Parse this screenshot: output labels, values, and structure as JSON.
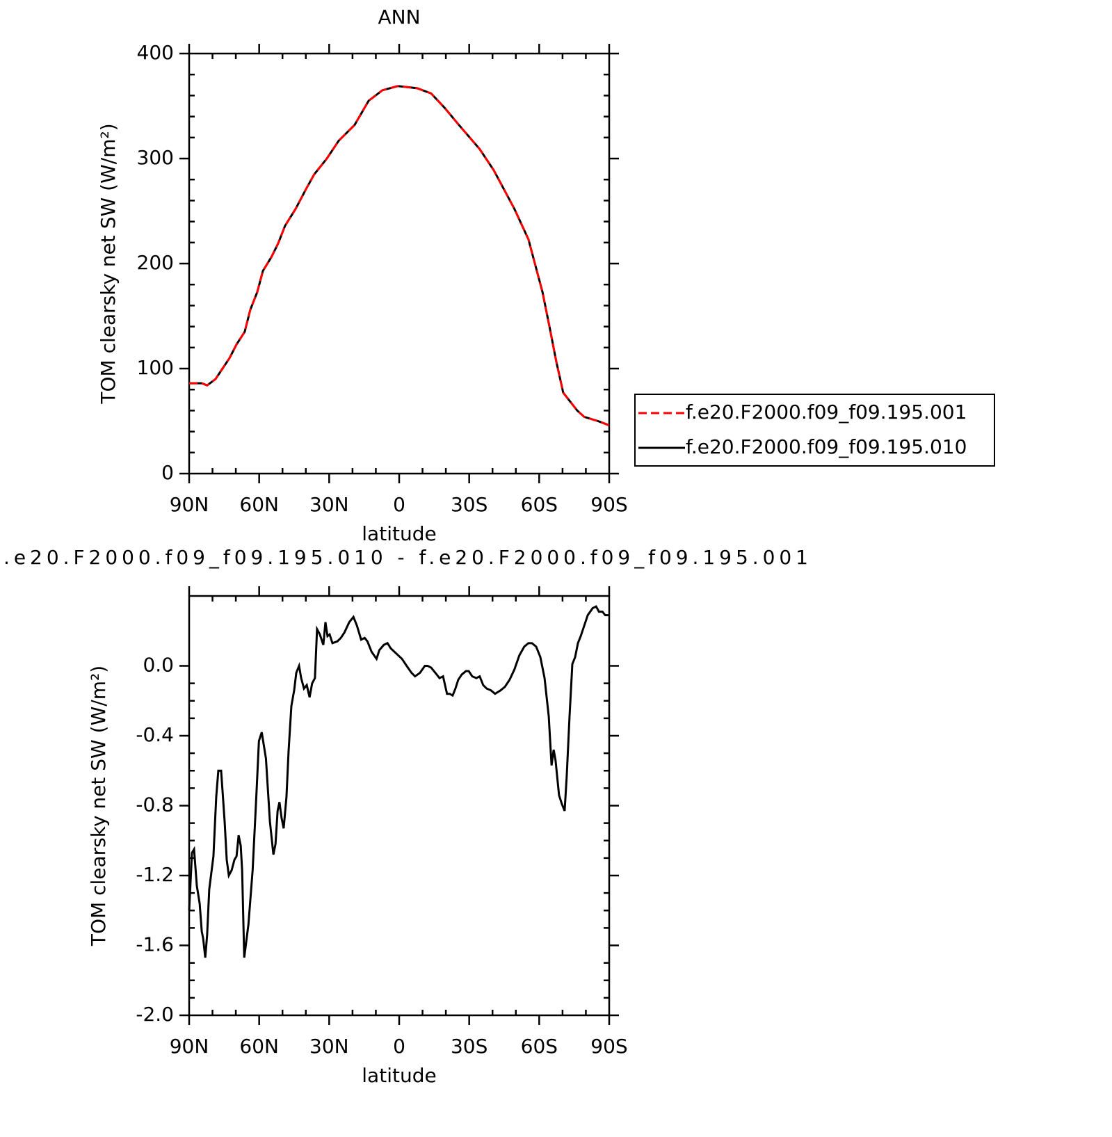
{
  "chart_data": [
    {
      "type": "line",
      "title": "ANN",
      "xlabel": "latitude",
      "ylabel": "TOM clearsky net SW (W/m²)",
      "xlim": [
        90,
        -90
      ],
      "xticks": [
        {
          "value": 90,
          "label": "90N"
        },
        {
          "value": 60,
          "label": "60N"
        },
        {
          "value": 30,
          "label": "30N"
        },
        0,
        {
          "value": -30,
          "label": "30S"
        },
        {
          "value": -60,
          "label": "60S"
        },
        {
          "value": -90,
          "label": "90S"
        }
      ],
      "ylim": [
        0,
        400
      ],
      "yticks": [
        0,
        100,
        200,
        300,
        400
      ],
      "legend": "right",
      "x": [
        90,
        84.6,
        82.3,
        78.7,
        75.7,
        72.7,
        69.7,
        66.2,
        63.8,
        60.8,
        58.4,
        54.8,
        51.9,
        48.9,
        44.4,
        39.9,
        36.4,
        31,
        25.9,
        19.1,
        13.1,
        7.2,
        0.6,
        -7.7,
        -13.7,
        -19.6,
        -25.6,
        -34.5,
        -40.5,
        -49.4,
        -55.4,
        -61.4,
        -64.4,
        -67.3,
        -70.3,
        -76.3,
        -79.3,
        -85.2,
        -90
      ],
      "series": [
        {
          "name": "f.e20.F2000.f09_f09.195.001",
          "color": "#ff0000",
          "line_style": "dashed",
          "values": [
            86,
            86,
            84,
            90,
            100,
            110,
            123,
            135,
            156,
            173,
            193,
            206,
            219,
            236,
            252,
            271,
            285,
            300,
            317,
            332,
            355,
            365,
            369,
            367,
            362,
            348,
            332,
            309,
            289,
            252,
            223,
            173,
            140,
            107,
            77,
            60,
            54,
            50,
            46
          ]
        },
        {
          "name": "f.e20.F2000.f09_f09.195.010",
          "color": "#000000",
          "line_style": "solid",
          "values": [
            86,
            86,
            84,
            90,
            100,
            110,
            123,
            135,
            156,
            173,
            193,
            206,
            219,
            236,
            252,
            271,
            285,
            300,
            317,
            332,
            355,
            365,
            369,
            367,
            362,
            348,
            332,
            309,
            289,
            252,
            223,
            173,
            140,
            107,
            77,
            60,
            54,
            50,
            46
          ]
        }
      ]
    },
    {
      "type": "line",
      "title": ".e20.F2000.f09_f09.195.010 - f.e20.F2000.f09_f09.195.001",
      "xlabel": "latitude",
      "ylabel": "TOM clearsky net SW (W/m²)",
      "xlim": [
        90,
        -90
      ],
      "xticks": [
        {
          "value": 90,
          "label": "90N"
        },
        {
          "value": 60,
          "label": "60N"
        },
        {
          "value": 30,
          "label": "30N"
        },
        0,
        {
          "value": -30,
          "label": "30S"
        },
        {
          "value": -60,
          "label": "60S"
        },
        {
          "value": -90,
          "label": "90S"
        }
      ],
      "ylim": [
        -2.0,
        0.4
      ],
      "yticks": [
        {
          "value": -2,
          "label": "-2.0"
        },
        -1.6,
        -1.2,
        -0.8,
        -0.4,
        {
          "value": 0,
          "label": "0.0"
        }
      ],
      "x": [
        90,
        88.8,
        87.9,
        86.7,
        85.5,
        84.6,
        84.0,
        83.1,
        82.3,
        81.4,
        79.6,
        78.4,
        77.5,
        76.3,
        74.8,
        73.9,
        73.0,
        71.8,
        70.6,
        69.7,
        68.8,
        67.9,
        67.3,
        66.4,
        64.6,
        62.8,
        61.3,
        60.1,
        58.9,
        57.1,
        55.4,
        53.9,
        53.0,
        52.1,
        51.3,
        50.4,
        49.5,
        48.3,
        47.4,
        46.2,
        45.0,
        44.1,
        42.9,
        42.0,
        40.8,
        39.6,
        38.4,
        37.3,
        36.1,
        35.2,
        34.0,
        32.5,
        31.6,
        30.7,
        29.8,
        28.6,
        26.5,
        25.0,
        23.5,
        21.4,
        19.6,
        18.1,
        16.3,
        14.8,
        13.6,
        11.8,
        9.7,
        8.5,
        6.6,
        5.0,
        3.6,
        1.2,
        -1.2,
        -3.2,
        -5.3,
        -6.8,
        -8.9,
        -11.0,
        -12.2,
        -13.7,
        -15.5,
        -17.3,
        -18.8,
        -20.5,
        -21.7,
        -22.9,
        -24.1,
        -25.3,
        -26.8,
        -28.6,
        -29.8,
        -31.3,
        -33.1,
        -34.5,
        -36.0,
        -37.5,
        -39.3,
        -41.1,
        -43.5,
        -45.3,
        -47.3,
        -49.4,
        -51.5,
        -53.6,
        -55.4,
        -56.9,
        -58.7,
        -60.5,
        -62.3,
        -64.1,
        -65.3,
        -66.2,
        -67.0,
        -68.5,
        -69.7,
        -70.9,
        -71.8,
        -73.0,
        -74.2,
        -75.4,
        -76.6,
        -77.8,
        -79.3,
        -80.8,
        -82.9,
        -84.4,
        -85.6,
        -87.1,
        -88.3,
        -90.0
      ],
      "series": [
        {
          "color": "#000000",
          "line_style": "solid",
          "values": [
            -1.4,
            -1.07,
            -1.05,
            -1.26,
            -1.36,
            -1.52,
            -1.56,
            -1.67,
            -1.54,
            -1.28,
            -1.09,
            -0.75,
            -0.6,
            -0.6,
            -0.89,
            -1.11,
            -1.2,
            -1.17,
            -1.11,
            -1.09,
            -0.97,
            -1.03,
            -1.17,
            -1.67,
            -1.48,
            -1.17,
            -0.77,
            -0.43,
            -0.38,
            -0.53,
            -0.89,
            -1.08,
            -1.02,
            -0.83,
            -0.78,
            -0.87,
            -0.93,
            -0.75,
            -0.49,
            -0.23,
            -0.14,
            -0.04,
            0.0,
            -0.07,
            -0.13,
            -0.11,
            -0.18,
            -0.1,
            -0.07,
            0.21,
            0.18,
            0.12,
            0.25,
            0.17,
            0.18,
            0.13,
            0.14,
            0.16,
            0.19,
            0.25,
            0.28,
            0.23,
            0.15,
            0.16,
            0.14,
            0.08,
            0.04,
            0.09,
            0.12,
            0.13,
            0.1,
            0.07,
            0.04,
            0.0,
            -0.04,
            -0.06,
            -0.04,
            0.0,
            0.0,
            -0.01,
            -0.04,
            -0.07,
            -0.06,
            -0.16,
            -0.16,
            -0.17,
            -0.13,
            -0.08,
            -0.05,
            -0.03,
            -0.03,
            -0.06,
            -0.07,
            -0.06,
            -0.11,
            -0.13,
            -0.14,
            -0.16,
            -0.14,
            -0.12,
            -0.08,
            -0.02,
            0.06,
            0.11,
            0.13,
            0.13,
            0.11,
            0.05,
            -0.07,
            -0.29,
            -0.57,
            -0.48,
            -0.54,
            -0.74,
            -0.79,
            -0.83,
            -0.63,
            -0.29,
            0.01,
            0.05,
            0.13,
            0.17,
            0.23,
            0.29,
            0.33,
            0.34,
            0.31,
            0.31,
            0.29,
            0.29
          ]
        }
      ]
    }
  ]
}
